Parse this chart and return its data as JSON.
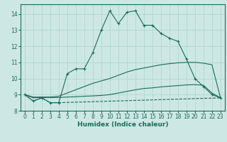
{
  "xlabel": "Humidex (Indice chaleur)",
  "ylabel": "",
  "bg_color": "#cde8e4",
  "line_color": "#1a6b5a",
  "grid_color": "#b0d8d0",
  "xlim": [
    -0.5,
    23.5
  ],
  "ylim": [
    8.0,
    14.6
  ],
  "yticks": [
    8,
    9,
    10,
    11,
    12,
    13,
    14
  ],
  "xticks": [
    0,
    1,
    2,
    3,
    4,
    5,
    6,
    7,
    8,
    9,
    10,
    11,
    12,
    13,
    14,
    15,
    16,
    17,
    18,
    19,
    20,
    21,
    22,
    23
  ],
  "curves": [
    {
      "x": [
        0,
        1,
        2,
        3,
        4,
        5,
        6,
        7,
        8,
        9,
        10,
        11,
        12,
        13,
        14,
        15,
        16,
        17,
        18,
        19,
        20,
        21,
        22,
        23
      ],
      "y": [
        9.0,
        8.6,
        8.8,
        8.5,
        8.5,
        10.3,
        10.6,
        10.6,
        11.6,
        13.0,
        14.2,
        13.4,
        14.1,
        14.2,
        13.3,
        13.3,
        12.8,
        12.5,
        12.3,
        11.2,
        10.0,
        9.5,
        9.0,
        8.8
      ],
      "marker": "+"
    },
    {
      "x": [
        0,
        1,
        2,
        3,
        4,
        5,
        6,
        7,
        8,
        9,
        10,
        11,
        12,
        13,
        14,
        15,
        16,
        17,
        18,
        19,
        20,
        21,
        22,
        23
      ],
      "y": [
        9.0,
        8.85,
        8.85,
        8.85,
        8.9,
        9.1,
        9.3,
        9.5,
        9.7,
        9.85,
        10.0,
        10.2,
        10.4,
        10.55,
        10.65,
        10.75,
        10.85,
        10.92,
        10.97,
        11.0,
        11.0,
        10.95,
        10.85,
        8.8
      ],
      "marker": null
    },
    {
      "x": [
        0,
        1,
        2,
        3,
        4,
        5,
        6,
        7,
        8,
        9,
        10,
        11,
        12,
        13,
        14,
        15,
        16,
        17,
        18,
        19,
        20,
        21,
        22,
        23
      ],
      "y": [
        9.0,
        8.8,
        8.82,
        8.82,
        8.82,
        8.85,
        8.87,
        8.9,
        8.92,
        8.95,
        9.0,
        9.1,
        9.2,
        9.3,
        9.38,
        9.42,
        9.48,
        9.52,
        9.56,
        9.6,
        9.62,
        9.58,
        9.1,
        8.8
      ],
      "marker": null
    },
    {
      "x": [
        0,
        1,
        2,
        3,
        4,
        23
      ],
      "y": [
        9.0,
        8.6,
        8.8,
        8.5,
        8.5,
        8.8
      ],
      "marker": null,
      "linestyle": "--"
    }
  ]
}
